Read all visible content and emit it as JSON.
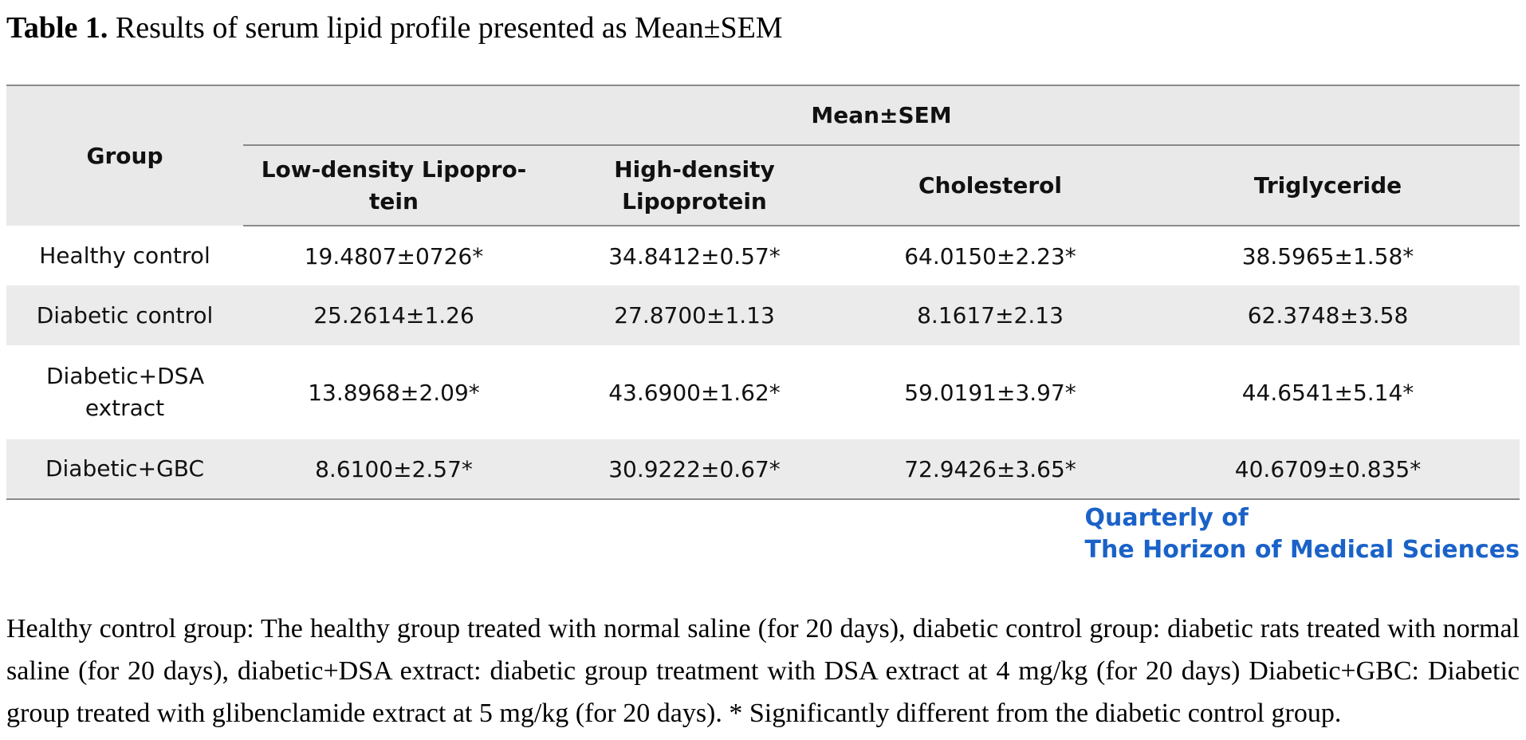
{
  "caption": {
    "lead": "Table 1.",
    "text": "Results of serum lipid profile presented as Mean±SEM"
  },
  "table": {
    "group_header": "Group",
    "span_header": "Mean±SEM",
    "columns": [
      "Low-density Lipopro-tein",
      "High-density Lipoprotein",
      "Cholesterol",
      "Triglyceride"
    ],
    "rows": [
      {
        "group": "Healthy control",
        "values": [
          "19.4807±0726*",
          "34.8412±0.57*",
          "64.0150±2.23*",
          "38.5965±1.58*"
        ]
      },
      {
        "group": "Diabetic control",
        "values": [
          "25.2614±1.26",
          "27.8700±1.13",
          "8.1617±2.13",
          "62.3748±3.58"
        ]
      },
      {
        "group": "Diabetic+DSA extract",
        "values": [
          "13.8968±2.09*",
          "43.6900±1.62*",
          "59.0191±3.97*",
          "44.6541±5.14*"
        ]
      },
      {
        "group": "Diabetic+GBC",
        "values": [
          "8.6100±2.57*",
          "30.9222±0.67*",
          "72.9426±3.65*",
          "40.6709±0.835*"
        ]
      }
    ]
  },
  "journal": {
    "line1": "Quarterly of",
    "line2": "The Horizon of Medical Sciences"
  },
  "note": "Healthy control group: The healthy group treated with normal saline (for 20 days), diabetic control group: diabetic rats treated with normal saline (for 20 days), diabetic+DSA extract: diabetic group treatment with DSA extract at 4 mg/kg (for 20 days) Diabetic+GBC: Diabetic group treated with glibenclamide extract at 5 mg/kg (for 20 days). * Significantly different from the diabetic control group."
}
